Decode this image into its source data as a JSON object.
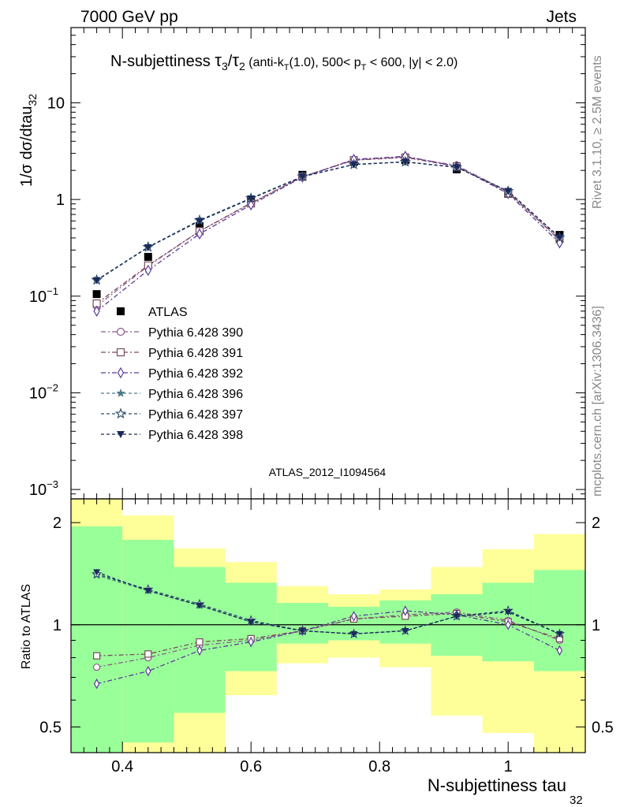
{
  "header": {
    "left": "7000 GeV pp",
    "right": "Jets"
  },
  "side_labels": {
    "rivet": "Rivet 3.1.10, ≥ 2.5M events",
    "mcplots": "mcplots.cern.ch [arXiv:1306.3436]"
  },
  "watermark": "ATLAS_2012_I1094564",
  "colors": {
    "data": "#000000",
    "p390": "#8a5a8a",
    "p391": "#7a4a5a",
    "p392": "#5a3a9a",
    "p396": "#4a7a8a",
    "p397": "#2a4a6a",
    "p398": "#1a2a5a",
    "band_inner": "#99ff99",
    "band_outer": "#ffff99"
  },
  "chart_data": [
    {
      "type": "scatter",
      "title_parts": {
        "lead": "N-subjettiness ",
        "tau3": "τ",
        "sub3": "3",
        "slash": "/",
        "tau2": "τ",
        "sub2": "2",
        "cut_a": " (anti-k",
        "cut_T": "T",
        "cut_b": "(1.0), 500< p",
        "cut_pT": "T",
        "cut_c": " < 600, |y| < 2.0)"
      },
      "ylabel": {
        "main": "1/σ dσ/dtau",
        "sub": "32"
      },
      "xlabel": {
        "main": "N-subjettiness tau",
        "sub": "32"
      },
      "y_scale": "log",
      "ylim": [
        0.0008,
        60
      ],
      "xlim": [
        0.32,
        1.12
      ],
      "y_ticks": [
        {
          "value": 0.001,
          "base": "10",
          "exp": "−3"
        },
        {
          "value": 0.01,
          "base": "10",
          "exp": "−2"
        },
        {
          "value": 0.1,
          "base": "10",
          "exp": "−1"
        },
        {
          "value": 1,
          "base": "1",
          "exp": ""
        },
        {
          "value": 10,
          "base": "10",
          "exp": ""
        }
      ],
      "x": [
        0.36,
        0.44,
        0.52,
        0.6,
        0.68,
        0.76,
        0.84,
        0.92,
        1.0,
        1.08
      ],
      "series": [
        {
          "name": "ATLAS",
          "key": "data",
          "marker": "square-filled",
          "values": [
            0.105,
            0.255,
            0.53,
            1.0,
            1.8,
            2.45,
            2.55,
            2.05,
            1.15,
            0.43
          ]
        },
        {
          "name": "Pythia 6.428 390",
          "key": "p390",
          "marker": "circle-open",
          "values": [
            0.079,
            0.205,
            0.47,
            0.92,
            1.72,
            2.55,
            2.75,
            2.25,
            1.2,
            0.38
          ]
        },
        {
          "name": "Pythia 6.428 391",
          "key": "p391",
          "marker": "square-open",
          "values": [
            0.084,
            0.208,
            0.47,
            0.91,
            1.72,
            2.55,
            2.72,
            2.2,
            1.17,
            0.39
          ]
        },
        {
          "name": "Pythia 6.428 392",
          "key": "p392",
          "marker": "diamond-open",
          "values": [
            0.07,
            0.185,
            0.44,
            0.88,
            1.7,
            2.6,
            2.8,
            2.2,
            1.15,
            0.355
          ]
        },
        {
          "name": "Pythia 6.428 396",
          "key": "p396",
          "marker": "star-filled",
          "values": [
            0.145,
            0.32,
            0.6,
            1.02,
            1.72,
            2.3,
            2.45,
            2.15,
            1.22,
            0.405
          ]
        },
        {
          "name": "Pythia 6.428 397",
          "key": "p397",
          "marker": "star-open",
          "values": [
            0.147,
            0.322,
            0.61,
            1.03,
            1.73,
            2.3,
            2.45,
            2.15,
            1.22,
            0.405
          ]
        },
        {
          "name": "Pythia 6.428 398",
          "key": "p398",
          "marker": "triangle-down-filled",
          "values": [
            0.146,
            0.32,
            0.6,
            1.02,
            1.72,
            2.3,
            2.45,
            2.15,
            1.22,
            0.405
          ]
        }
      ]
    },
    {
      "type": "scatter",
      "ylabel": "Ratio to ATLAS",
      "y_scale": "log",
      "ylim": [
        0.42,
        2.35
      ],
      "xlim": [
        0.32,
        1.12
      ],
      "y_ticks": [
        {
          "value": 0.5,
          "label": "0.5"
        },
        {
          "value": 1,
          "label": "1"
        },
        {
          "value": 2,
          "label": "2"
        }
      ],
      "x_ticks": [
        {
          "value": 0.4,
          "label": "0.4"
        },
        {
          "value": 0.6,
          "label": "0.6"
        },
        {
          "value": 0.8,
          "label": "0.8"
        },
        {
          "value": 1.0,
          "label": "1"
        }
      ],
      "bins": [
        {
          "lo": 0.32,
          "hi": 0.4,
          "inner": [
            0.3,
            1.95
          ],
          "outer": [
            0.3,
            2.4
          ]
        },
        {
          "lo": 0.4,
          "hi": 0.48,
          "inner": [
            0.45,
            1.78
          ],
          "outer": [
            0.42,
            2.1
          ]
        },
        {
          "lo": 0.48,
          "hi": 0.56,
          "inner": [
            0.55,
            1.48
          ],
          "outer": [
            0.37,
            1.68
          ]
        },
        {
          "lo": 0.56,
          "hi": 0.64,
          "inner": [
            0.73,
            1.33
          ],
          "outer": [
            0.62,
            1.53
          ]
        },
        {
          "lo": 0.64,
          "hi": 0.72,
          "inner": [
            0.88,
            1.16
          ],
          "outer": [
            0.77,
            1.3
          ]
        },
        {
          "lo": 0.72,
          "hi": 0.8,
          "inner": [
            0.9,
            1.13
          ],
          "outer": [
            0.8,
            1.23
          ]
        },
        {
          "lo": 0.8,
          "hi": 0.88,
          "inner": [
            0.88,
            1.18
          ],
          "outer": [
            0.75,
            1.27
          ]
        },
        {
          "lo": 0.88,
          "hi": 0.96,
          "inner": [
            0.81,
            1.23
          ],
          "outer": [
            0.54,
            1.48
          ]
        },
        {
          "lo": 0.96,
          "hi": 1.04,
          "inner": [
            0.78,
            1.33
          ],
          "outer": [
            0.48,
            1.67
          ]
        },
        {
          "lo": 1.04,
          "hi": 1.12,
          "inner": [
            0.73,
            1.45
          ],
          "outer": [
            0.4,
            1.85
          ]
        }
      ],
      "series": [
        {
          "name": "Pythia 6.428 390",
          "key": "p390",
          "marker": "circle-open",
          "values": [
            0.75,
            0.8,
            0.87,
            0.9,
            0.96,
            1.04,
            1.07,
            1.09,
            1.03,
            0.9
          ]
        },
        {
          "name": "Pythia 6.428 391",
          "key": "p391",
          "marker": "square-open",
          "values": [
            0.81,
            0.82,
            0.89,
            0.91,
            0.96,
            1.04,
            1.06,
            1.08,
            1.02,
            0.91
          ]
        },
        {
          "name": "Pythia 6.428 392",
          "key": "p392",
          "marker": "diamond-open",
          "values": [
            0.67,
            0.73,
            0.84,
            0.89,
            0.96,
            1.06,
            1.1,
            1.07,
            1.0,
            0.84
          ]
        },
        {
          "name": "Pythia 6.428 396",
          "key": "p396",
          "marker": "star-filled",
          "values": [
            1.4,
            1.26,
            1.14,
            1.02,
            0.96,
            0.94,
            0.96,
            1.06,
            1.1,
            0.94
          ]
        },
        {
          "name": "Pythia 6.428 397",
          "key": "p397",
          "marker": "star-open",
          "values": [
            1.41,
            1.27,
            1.15,
            1.03,
            0.96,
            0.94,
            0.96,
            1.06,
            1.1,
            0.94
          ]
        },
        {
          "name": "Pythia 6.428 398",
          "key": "p398",
          "marker": "triangle-down-filled",
          "values": [
            1.43,
            1.26,
            1.14,
            1.02,
            0.96,
            0.94,
            0.96,
            1.06,
            1.09,
            0.94
          ]
        }
      ]
    }
  ]
}
